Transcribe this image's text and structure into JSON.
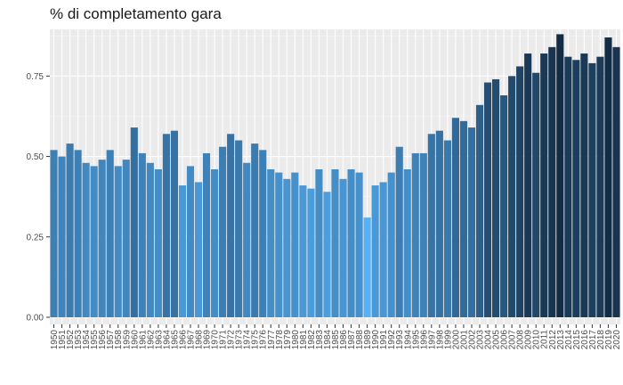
{
  "chart_data": {
    "type": "bar",
    "title": "% di completamento gara",
    "xlabel": "",
    "ylabel": "",
    "ylim": [
      0,
      0.895
    ],
    "yticks": [
      0.0,
      0.25,
      0.5,
      0.75
    ],
    "ytick_labels": [
      "0.00",
      "0.25",
      "0.50",
      "0.75"
    ],
    "grid": true,
    "legend": "none",
    "color_scale": {
      "low": "#56b1f7",
      "high": "#132b43"
    },
    "categories": [
      "1950",
      "1951",
      "1952",
      "1953",
      "1954",
      "1955",
      "1956",
      "1957",
      "1958",
      "1959",
      "1960",
      "1961",
      "1962",
      "1963",
      "1964",
      "1965",
      "1966",
      "1967",
      "1968",
      "1969",
      "1970",
      "1971",
      "1972",
      "1973",
      "1974",
      "1975",
      "1976",
      "1977",
      "1978",
      "1979",
      "1980",
      "1981",
      "1982",
      "1983",
      "1984",
      "1985",
      "1986",
      "1987",
      "1988",
      "1989",
      "1990",
      "1991",
      "1992",
      "1993",
      "1994",
      "1995",
      "1996",
      "1997",
      "1998",
      "1999",
      "2000",
      "2001",
      "2002",
      "2003",
      "2004",
      "2005",
      "2006",
      "2007",
      "2008",
      "2009",
      "2010",
      "2011",
      "2012",
      "2013",
      "2014",
      "2015",
      "2016",
      "2017",
      "2018",
      "2019",
      "2020"
    ],
    "values": [
      0.52,
      0.5,
      0.54,
      0.52,
      0.48,
      0.47,
      0.49,
      0.52,
      0.47,
      0.49,
      0.59,
      0.51,
      0.48,
      0.46,
      0.57,
      0.58,
      0.41,
      0.47,
      0.42,
      0.51,
      0.46,
      0.53,
      0.57,
      0.55,
      0.48,
      0.54,
      0.52,
      0.46,
      0.45,
      0.43,
      0.45,
      0.41,
      0.4,
      0.46,
      0.39,
      0.46,
      0.43,
      0.46,
      0.45,
      0.31,
      0.41,
      0.42,
      0.45,
      0.53,
      0.46,
      0.51,
      0.51,
      0.57,
      0.58,
      0.55,
      0.62,
      0.61,
      0.59,
      0.66,
      0.73,
      0.74,
      0.69,
      0.75,
      0.78,
      0.82,
      0.76,
      0.82,
      0.84,
      0.88,
      0.81,
      0.8,
      0.82,
      0.79,
      0.81,
      0.87,
      0.84
    ]
  }
}
